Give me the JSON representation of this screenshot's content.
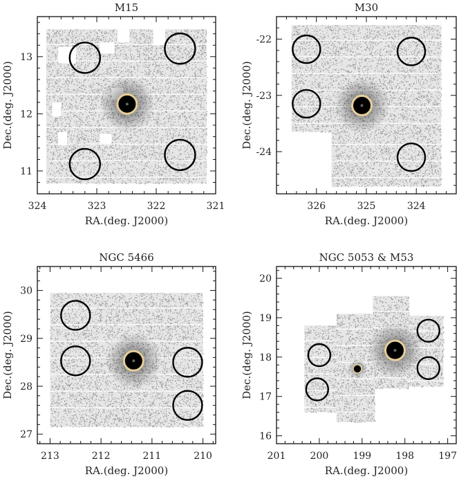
{
  "chart_data": [
    {
      "type": "scatter",
      "title": "M15",
      "xlabel": "RA.(deg. J2000)",
      "ylabel": "Dec.(deg. J2000)",
      "xlim": [
        324,
        321
      ],
      "ylim": [
        10.6,
        13.7
      ],
      "xticks": [
        324,
        323,
        322,
        321
      ],
      "yticks": [
        11,
        12,
        13
      ],
      "cluster": {
        "ra": 322.49,
        "dec": 12.17
      },
      "control_fields": [
        {
          "ra": 323.2,
          "dec": 12.98
        },
        {
          "ra": 321.6,
          "dec": 13.14
        },
        {
          "ra": 323.2,
          "dec": 11.12
        },
        {
          "ra": 321.6,
          "dec": 11.28
        }
      ],
      "coverage": [
        [
          323.85,
          321.15,
          10.78,
          13.48
        ]
      ],
      "gaps": [
        [
          323.65,
          323.35,
          12.88,
          13.17
        ],
        [
          322.95,
          322.7,
          13.05,
          13.25
        ],
        [
          322.05,
          321.85,
          13.2,
          13.48
        ],
        [
          322.65,
          322.45,
          13.25,
          13.48
        ],
        [
          323.75,
          323.6,
          11.95,
          12.2
        ],
        [
          322.75,
          322.55,
          12.25,
          12.45
        ],
        [
          323.65,
          323.5,
          11.45,
          11.68
        ],
        [
          322.95,
          322.75,
          11.48,
          11.65
        ]
      ]
    },
    {
      "type": "scatter",
      "title": "M30",
      "xlabel": "RA.(deg. J2000)",
      "ylabel": "Dec.(deg. J2000)",
      "xlim": [
        326.8,
        323.2
      ],
      "ylim": [
        -24.75,
        -21.6
      ],
      "xticks": [
        326,
        325,
        324
      ],
      "yticks": [
        -22,
        -23,
        -24
      ],
      "cluster": {
        "ra": 325.09,
        "dec": -23.18
      },
      "control_fields": [
        {
          "ra": 326.2,
          "dec": -22.18
        },
        {
          "ra": 324.1,
          "dec": -22.22
        },
        {
          "ra": 326.2,
          "dec": -23.15
        },
        {
          "ra": 324.1,
          "dec": -24.1
        }
      ],
      "coverage": [
        [
          326.5,
          323.5,
          -23.65,
          -21.75
        ],
        [
          325.7,
          323.5,
          -24.62,
          -23.6
        ]
      ],
      "gaps": []
    },
    {
      "type": "scatter",
      "title": "NGC 5466",
      "xlabel": "RA.(deg. J2000)",
      "ylabel": "Dec.(deg. J2000)",
      "xlim": [
        213.25,
        209.75
      ],
      "ylim": [
        26.8,
        30.5
      ],
      "xticks": [
        213,
        212,
        211,
        210
      ],
      "yticks": [
        27,
        28,
        29,
        30
      ],
      "cluster": {
        "ra": 211.36,
        "dec": 28.53
      },
      "control_fields": [
        {
          "ra": 212.5,
          "dec": 29.48
        },
        {
          "ra": 212.5,
          "dec": 28.53
        },
        {
          "ra": 210.3,
          "dec": 28.5
        },
        {
          "ra": 210.3,
          "dec": 27.6
        }
      ],
      "coverage": [
        [
          213.0,
          210.0,
          27.15,
          29.95
        ]
      ],
      "gaps": []
    },
    {
      "type": "scatter",
      "title": "NGC 5053 & M53",
      "xlabel": "RA.(deg. J2000)",
      "ylabel": "Dec.(deg. J2000)",
      "xlim": [
        201,
        196.8
      ],
      "ylim": [
        15.8,
        20.3
      ],
      "xticks": [
        201,
        200,
        199,
        198,
        197
      ],
      "yticks": [
        16,
        17,
        18,
        19,
        20
      ],
      "cluster": {
        "ra": 198.23,
        "dec": 18.17
      },
      "secondary_cluster": {
        "ra": 199.11,
        "dec": 17.7
      },
      "control_fields": [
        {
          "ra": 200.0,
          "dec": 18.05
        },
        {
          "ra": 200.05,
          "dec": 17.18
        },
        {
          "ra": 197.45,
          "dec": 18.67
        },
        {
          "ra": 197.45,
          "dec": 17.72
        }
      ],
      "coverage": [
        [
          200.35,
          199.55,
          16.6,
          18.8
        ],
        [
          199.6,
          198.7,
          16.35,
          19.1
        ],
        [
          198.75,
          197.9,
          17.2,
          19.55
        ],
        [
          197.95,
          197.1,
          17.25,
          19.05
        ]
      ],
      "gaps": []
    }
  ]
}
